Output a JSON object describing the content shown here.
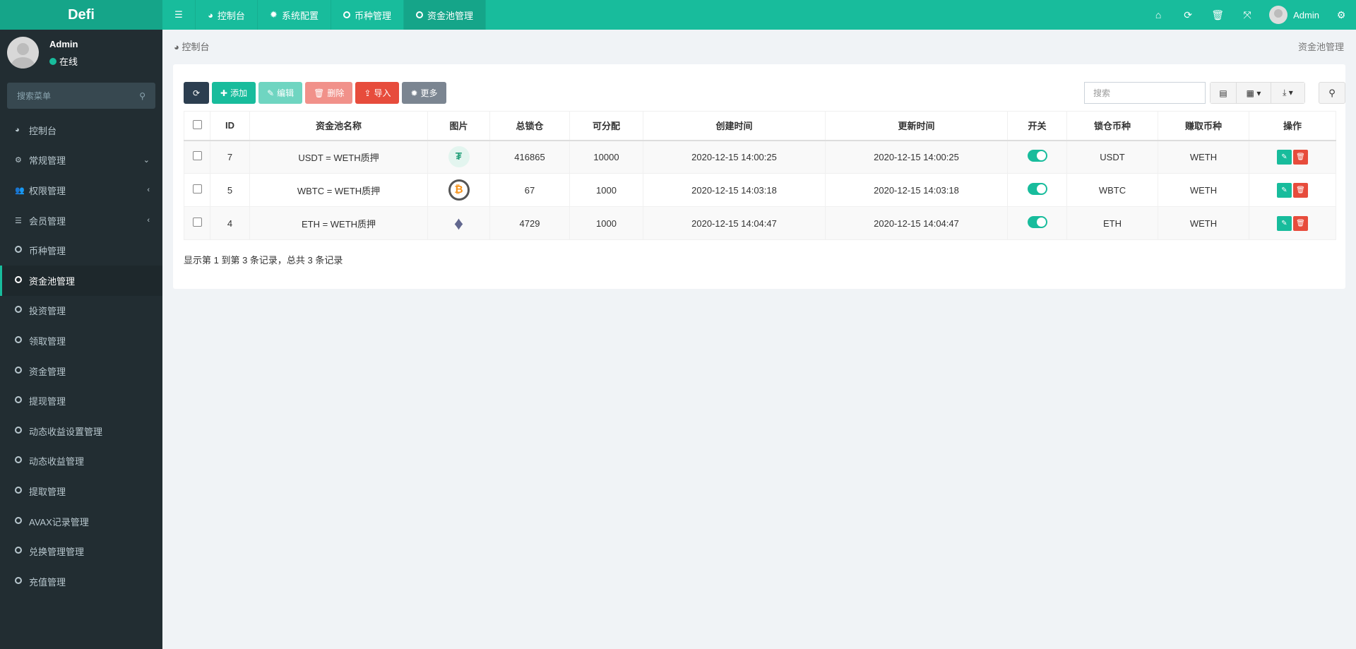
{
  "app": {
    "logo": "Defi"
  },
  "topnav": {
    "tabs": [
      {
        "label": "控制台",
        "icon": "dashboard-icon"
      },
      {
        "label": "系统配置",
        "icon": "gear-icon"
      },
      {
        "label": "币种管理",
        "icon": "circle-icon"
      },
      {
        "label": "资金池管理",
        "icon": "circle-icon",
        "active": true
      }
    ],
    "user": "Admin"
  },
  "sidebar": {
    "user": "Admin",
    "status": "在线",
    "search_placeholder": "搜索菜单",
    "items": [
      {
        "label": "控制台",
        "icon": "dashboard-icon"
      },
      {
        "label": "常规管理",
        "icon": "cogs-icon",
        "arrow": "⌄"
      },
      {
        "label": "权限管理",
        "icon": "users-icon",
        "arrow": "‹"
      },
      {
        "label": "会员管理",
        "icon": "list-icon",
        "arrow": "‹"
      },
      {
        "label": "币种管理"
      },
      {
        "label": "资金池管理",
        "active": true
      },
      {
        "label": "投资管理"
      },
      {
        "label": "领取管理"
      },
      {
        "label": "资金管理"
      },
      {
        "label": "提现管理"
      },
      {
        "label": "动态收益设置管理"
      },
      {
        "label": "动态收益管理"
      },
      {
        "label": "提取管理"
      },
      {
        "label": "AVAX记录管理"
      },
      {
        "label": "兑换管理管理"
      },
      {
        "label": "充值管理"
      }
    ]
  },
  "breadcrumb": {
    "home": "控制台",
    "current": "资金池管理"
  },
  "toolbar": {
    "add": "添加",
    "edit": "编辑",
    "delete": "删除",
    "import": "导入",
    "more": "更多",
    "search_placeholder": "搜索"
  },
  "colors": {
    "accent": "#18bc9c",
    "danger": "#e74c3c",
    "sidebar": "#222d32"
  },
  "table": {
    "headers": [
      "ID",
      "资金池名称",
      "图片",
      "总锁仓",
      "可分配",
      "创建时间",
      "更新时间",
      "开关",
      "锁仓币种",
      "赚取币种",
      "操作"
    ],
    "rows": [
      {
        "id": "7",
        "name": "USDT = WETH质押",
        "coin": "usdt",
        "total": "416865",
        "alloc": "10000",
        "created": "2020-12-15 14:00:25",
        "updated": "2020-12-15 14:00:25",
        "switch": true,
        "lock": "USDT",
        "earn": "WETH"
      },
      {
        "id": "5",
        "name": "WBTC = WETH质押",
        "coin": "btc",
        "total": "67",
        "alloc": "1000",
        "created": "2020-12-15 14:03:18",
        "updated": "2020-12-15 14:03:18",
        "switch": true,
        "lock": "WBTC",
        "earn": "WETH"
      },
      {
        "id": "4",
        "name": "ETH = WETH质押",
        "coin": "eth",
        "total": "4729",
        "alloc": "1000",
        "created": "2020-12-15 14:04:47",
        "updated": "2020-12-15 14:04:47",
        "switch": true,
        "lock": "ETH",
        "earn": "WETH"
      }
    ]
  },
  "footer": "显示第 1 到第 3 条记录，总共 3 条记录"
}
